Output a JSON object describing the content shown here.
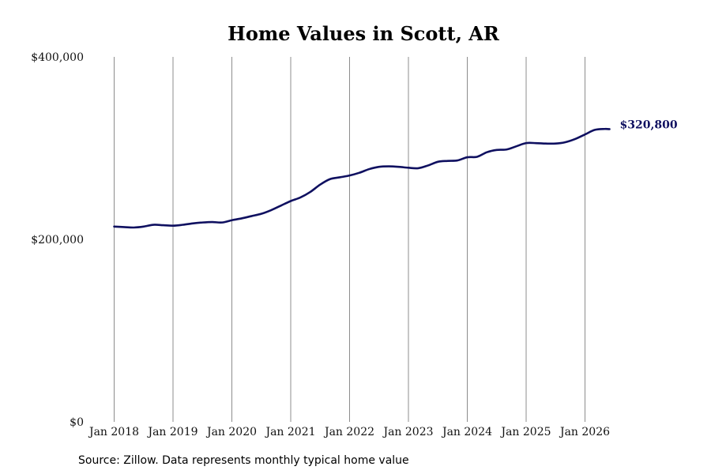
{
  "chart_data": {
    "type": "line",
    "title": "Home Values in Scott, AR",
    "xlabel": "",
    "ylabel": "",
    "x_ticks": [
      "Jan 2018",
      "Jan 2019",
      "Jan 2020",
      "Jan 2021",
      "Jan 2022",
      "Jan 2023",
      "Jan 2024",
      "Jan 2025",
      "Jan 2026"
    ],
    "y_ticks": [
      "$0",
      "$200,000",
      "$400,000"
    ],
    "ylim": [
      0,
      400000
    ],
    "xlim": [
      "2018-01",
      "2026-06"
    ],
    "grid": "vertical",
    "legend": "none",
    "end_label": "$320,800",
    "series": [
      {
        "color": "#0f1060",
        "points": [
          [
            "2018-01",
            214000
          ],
          [
            "2018-03",
            213500
          ],
          [
            "2018-05",
            213000
          ],
          [
            "2018-07",
            214000
          ],
          [
            "2018-09",
            216000
          ],
          [
            "2018-11",
            215500
          ],
          [
            "2019-01",
            215000
          ],
          [
            "2019-03",
            216000
          ],
          [
            "2019-05",
            217500
          ],
          [
            "2019-07",
            218500
          ],
          [
            "2019-09",
            219000
          ],
          [
            "2019-11",
            218500
          ],
          [
            "2020-01",
            221000
          ],
          [
            "2020-03",
            223000
          ],
          [
            "2020-05",
            225500
          ],
          [
            "2020-07",
            228000
          ],
          [
            "2020-09",
            232000
          ],
          [
            "2020-11",
            237000
          ],
          [
            "2021-01",
            242000
          ],
          [
            "2021-03",
            246000
          ],
          [
            "2021-05",
            252000
          ],
          [
            "2021-07",
            260000
          ],
          [
            "2021-09",
            266000
          ],
          [
            "2021-11",
            268000
          ],
          [
            "2022-01",
            270000
          ],
          [
            "2022-03",
            273000
          ],
          [
            "2022-05",
            277000
          ],
          [
            "2022-07",
            279500
          ],
          [
            "2022-09",
            280000
          ],
          [
            "2022-11",
            279500
          ],
          [
            "2023-01",
            278500
          ],
          [
            "2023-03",
            278000
          ],
          [
            "2023-05",
            281000
          ],
          [
            "2023-07",
            285000
          ],
          [
            "2023-09",
            286000
          ],
          [
            "2023-11",
            286500
          ],
          [
            "2024-01",
            290000
          ],
          [
            "2024-03",
            290500
          ],
          [
            "2024-05",
            295500
          ],
          [
            "2024-07",
            298000
          ],
          [
            "2024-09",
            298500
          ],
          [
            "2024-11",
            302000
          ],
          [
            "2025-01",
            305500
          ],
          [
            "2025-03",
            305500
          ],
          [
            "2025-05",
            305000
          ],
          [
            "2025-07",
            305000
          ],
          [
            "2025-09",
            306500
          ],
          [
            "2025-11",
            310000
          ],
          [
            "2026-01",
            315000
          ],
          [
            "2026-03",
            320000
          ],
          [
            "2026-05",
            321000
          ],
          [
            "2026-06",
            320800
          ]
        ]
      }
    ],
    "source": "Source: Zillow. Data represents monthly typical home value"
  }
}
